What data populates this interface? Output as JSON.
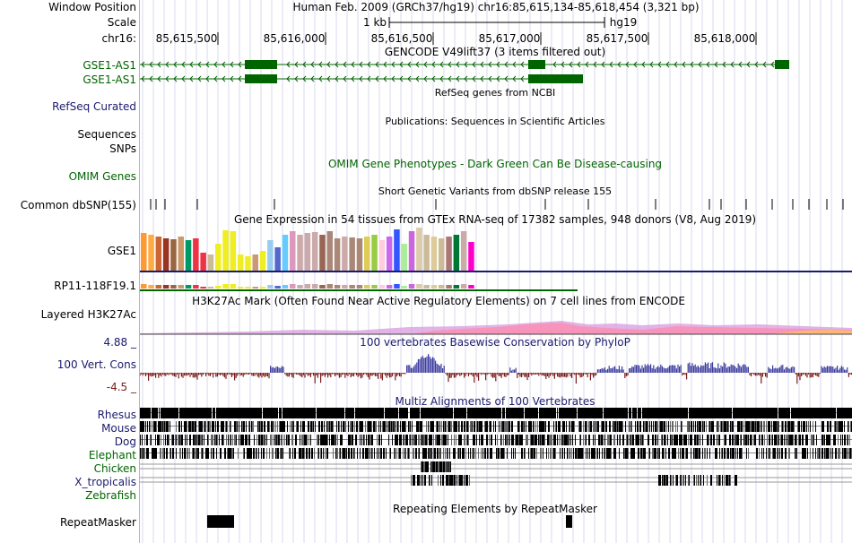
{
  "labels": {
    "window_position": "Window Position",
    "scale": "Scale",
    "chrom": "chr16:",
    "gencode_1": "GSE1-AS1",
    "gencode_2": "GSE1-AS1",
    "refseq": "RefSeq Curated",
    "sequences": "Sequences",
    "snps": "SNPs",
    "omim": "OMIM Genes",
    "dbsnp": "Common dbSNP(155)",
    "gse1": "GSE1",
    "rp11": "RP11-118F19.1",
    "h3k27ac": "Layered H3K27Ac",
    "cons_max": "4.88 _",
    "cons": "100 Vert. Cons",
    "cons_min": "-4.5 _",
    "species": [
      "Rhesus",
      "Mouse",
      "Dog",
      "Elephant",
      "Chicken",
      "X_tropicalis",
      "Zebrafish"
    ],
    "repeatmasker": "RepeatMasker"
  },
  "header": {
    "assembly_position": "Human Feb. 2009 (GRCh37/hg19)   chr16:85,615,134-85,618,454 (3,321 bp)",
    "scale_value": "1 kb",
    "scale_assembly": "hg19",
    "ticks": [
      "85,615,500",
      "85,616,000",
      "85,616,500",
      "85,617,000",
      "85,617,500",
      "85,618,000"
    ]
  },
  "tracks": {
    "gencode_title": "GENCODE V49lift37 (3 items filtered out)",
    "refseq_title": "RefSeq genes from NCBI",
    "publications_title": "Publications: Sequences in Scientific Articles",
    "omim_title": "OMIM Gene Phenotypes - Dark Green Can Be Disease-causing",
    "dbsnp_title": "Short Genetic Variants from dbSNP release 155",
    "gtex_title": "Gene Expression in 54 tissues from GTEx RNA-seq of 17382 samples, 948 donors (V8, Aug 2019)",
    "h3k27ac_title": "H3K27Ac Mark (Often Found Near Active Regulatory Elements) on 7 cell lines from ENCODE",
    "cons_title": "100 vertebrates Basewise Conservation by PhyloP",
    "multiz_title": "Multiz Alignments of 100 Vertebrates",
    "repeatmasker_title": "Repeating Elements by RepeatMasker"
  },
  "colors": {
    "gene": "#006400",
    "navy": "#1a1a6e",
    "cons_pos": "#3b3b9e",
    "cons_neg": "#7a1a1a",
    "gridline": "#d8d8ec"
  },
  "gtex_heights": [
    42,
    40,
    38,
    36,
    35,
    38,
    34,
    36,
    20,
    18,
    30,
    45,
    44,
    18,
    16,
    18,
    22,
    34,
    26,
    40,
    44,
    40,
    42,
    43,
    40,
    44,
    36,
    38,
    37,
    36,
    38,
    40,
    34,
    38,
    46,
    30,
    44,
    48,
    40,
    38,
    36,
    38,
    40,
    44,
    32
  ],
  "gtex_colors": [
    "#ff9933",
    "#ffaa44",
    "#cc6633",
    "#993322",
    "#996644",
    "#cc9966",
    "#009966",
    "#ee3344",
    "#ee3344",
    "#ccbb99",
    "#eeee22",
    "#eeee22",
    "#eeee22",
    "#eeee22",
    "#eeee22",
    "#cc9977",
    "#eeee22",
    "#99ccee",
    "#5566cc",
    "#66ccff",
    "#dd99bb",
    "#ccaaaa",
    "#ccaaaa",
    "#ccaaaa",
    "#996655",
    "#aa8877",
    "#aa8877",
    "#ccaaaa",
    "#aa8877",
    "#aa8877",
    "#ddcc55",
    "#99cc44",
    "#ffccdd",
    "#cc66ee",
    "#3355ff",
    "#aaee99",
    "#cc66dd",
    "#ddccaa",
    "#ccbb99",
    "#ddcc99",
    "#ccbb99",
    "#aa7777",
    "#007733",
    "#ccaaaa",
    "#ff00cc"
  ]
}
